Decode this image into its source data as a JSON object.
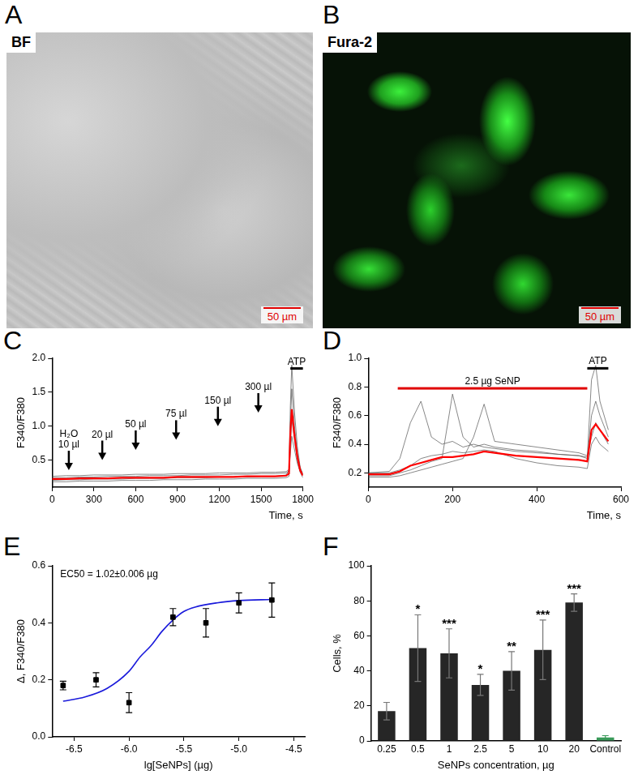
{
  "images": [
    {
      "panel": "A",
      "label": "BF",
      "scale_bar": "50 µm"
    },
    {
      "panel": "B",
      "label": "Fura-2",
      "scale_bar": "50 µm"
    }
  ],
  "chart_data": [
    {
      "panel": "C",
      "type": "line",
      "x_label": "Time, s",
      "y_label": "F340/F380",
      "x": [
        0,
        100,
        200,
        300,
        400,
        500,
        600,
        700,
        800,
        900,
        1000,
        1100,
        1200,
        1300,
        1400,
        1500,
        1600,
        1680,
        1700,
        1710,
        1720,
        1740,
        1760,
        1780,
        1800
      ],
      "series": [
        {
          "color": "#555555",
          "values": [
            0.2,
            0.21,
            0.21,
            0.22,
            0.22,
            0.22,
            0.23,
            0.23,
            0.23,
            0.24,
            0.24,
            0.24,
            0.25,
            0.25,
            0.25,
            0.26,
            0.26,
            0.28,
            0.35,
            1.3,
            1.9,
            1.2,
            0.7,
            0.4,
            0.28
          ]
        },
        {
          "color": "#555555",
          "values": [
            0.24,
            0.24,
            0.25,
            0.25,
            0.26,
            0.26,
            0.26,
            0.27,
            0.27,
            0.27,
            0.28,
            0.28,
            0.28,
            0.29,
            0.29,
            0.3,
            0.3,
            0.31,
            0.34,
            1.0,
            1.55,
            1.0,
            0.6,
            0.38,
            0.3
          ]
        },
        {
          "color": "#555555",
          "values": [
            0.18,
            0.18,
            0.19,
            0.19,
            0.19,
            0.2,
            0.2,
            0.2,
            0.21,
            0.21,
            0.21,
            0.22,
            0.22,
            0.22,
            0.23,
            0.23,
            0.23,
            0.24,
            0.26,
            0.7,
            1.1,
            0.8,
            0.5,
            0.32,
            0.24
          ]
        },
        {
          "color": "#555555",
          "values": [
            0.26,
            0.27,
            0.27,
            0.28,
            0.28,
            0.28,
            0.29,
            0.29,
            0.29,
            0.3,
            0.3,
            0.3,
            0.31,
            0.31,
            0.31,
            0.32,
            0.32,
            0.33,
            0.36,
            0.6,
            0.85,
            0.65,
            0.45,
            0.33,
            0.29
          ]
        },
        {
          "color": "#ff0000",
          "values": [
            0.22,
            0.22,
            0.23,
            0.23,
            0.23,
            0.24,
            0.24,
            0.24,
            0.24,
            0.25,
            0.25,
            0.25,
            0.25,
            0.25,
            0.26,
            0.26,
            0.26,
            0.27,
            0.3,
            0.9,
            1.25,
            0.85,
            0.55,
            0.35,
            0.27
          ]
        }
      ],
      "xlim": [
        0,
        1800
      ],
      "xticks": [
        0,
        300,
        600,
        900,
        1200,
        1500,
        1800
      ],
      "ylim": [
        0.1,
        2.0
      ],
      "yticks": [
        0.5,
        {
          "value": 1,
          "label": "1.0"
        },
        1.5,
        {
          "value": 2,
          "label": "2.0"
        }
      ],
      "grid": false,
      "annotations": [
        {
          "kind": "arrow",
          "text": [
            "H₂O",
            "10 µl"
          ],
          "x": 120,
          "y": 0.35
        },
        {
          "kind": "arrow",
          "text": [
            "20 µl"
          ],
          "x": 360,
          "y": 0.5
        },
        {
          "kind": "arrow",
          "text": [
            "50 µl"
          ],
          "x": 600,
          "y": 0.65
        },
        {
          "kind": "arrow",
          "text": [
            "75 µl"
          ],
          "x": 890,
          "y": 0.8
        },
        {
          "kind": "arrow",
          "text": [
            "150 µl"
          ],
          "x": 1190,
          "y": 1.0
        },
        {
          "kind": "arrow",
          "text": [
            "300 µl"
          ],
          "x": 1480,
          "y": 1.2
        },
        {
          "kind": "bar",
          "text": [
            "ATP"
          ],
          "x": [
            1710,
            1800
          ],
          "y": 1.85,
          "color": "#000000"
        }
      ]
    },
    {
      "panel": "D",
      "type": "line",
      "x_label": "Time, s",
      "y_label": "F340/F380",
      "x": [
        0,
        50,
        75,
        100,
        125,
        150,
        175,
        200,
        225,
        250,
        275,
        300,
        350,
        400,
        450,
        500,
        520,
        530,
        540,
        550,
        570
      ],
      "series": [
        {
          "color": "#555555",
          "values": [
            0.2,
            0.21,
            0.3,
            0.55,
            0.7,
            0.45,
            0.4,
            0.42,
            0.38,
            0.4,
            0.38,
            0.37,
            0.35,
            0.34,
            0.33,
            0.32,
            0.31,
            0.85,
            0.95,
            0.7,
            0.5
          ]
        },
        {
          "color": "#555555",
          "values": [
            0.18,
            0.18,
            0.2,
            0.22,
            0.25,
            0.28,
            0.3,
            0.75,
            0.45,
            0.38,
            0.4,
            0.38,
            0.36,
            0.35,
            0.33,
            0.32,
            0.3,
            0.6,
            0.7,
            0.6,
            0.45
          ]
        },
        {
          "color": "#555555",
          "values": [
            0.17,
            0.17,
            0.18,
            0.2,
            0.22,
            0.24,
            0.26,
            0.28,
            0.3,
            0.45,
            0.68,
            0.42,
            0.4,
            0.38,
            0.36,
            0.34,
            0.32,
            0.45,
            0.55,
            0.5,
            0.4
          ]
        },
        {
          "color": "#555555",
          "values": [
            0.2,
            0.2,
            0.22,
            0.25,
            0.3,
            0.32,
            0.33,
            0.35,
            0.34,
            0.35,
            0.36,
            0.35,
            0.3,
            0.27,
            0.25,
            0.24,
            0.23,
            0.4,
            0.45,
            0.4,
            0.35
          ]
        },
        {
          "color": "#ff0000",
          "values": [
            0.19,
            0.19,
            0.21,
            0.25,
            0.27,
            0.29,
            0.31,
            0.31,
            0.32,
            0.33,
            0.35,
            0.34,
            0.32,
            0.31,
            0.3,
            0.29,
            0.28,
            0.5,
            0.54,
            0.5,
            0.42
          ]
        }
      ],
      "xlim": [
        0,
        600
      ],
      "xticks": [
        0,
        200,
        400,
        600
      ],
      "ylim": [
        0.1,
        1.0
      ],
      "yticks": [
        0.2,
        0.4,
        0.6,
        0.8,
        {
          "value": 1,
          "label": "1.0"
        }
      ],
      "grid": false,
      "annotations": [
        {
          "kind": "bar",
          "text": [
            "2.5 µg SeNP"
          ],
          "x": [
            70,
            520
          ],
          "y": 0.79,
          "color": "#e00000"
        },
        {
          "kind": "bar",
          "text": [
            "ATP"
          ],
          "x": [
            520,
            570
          ],
          "y": 0.93,
          "color": "#000000"
        }
      ]
    },
    {
      "panel": "E",
      "type": "scatter",
      "x_label": "lg[SeNPs] (µg)",
      "y_label": "Δ, F340/F380",
      "annotations": [
        {
          "kind": "text",
          "text": [
            "EC50 = 1.02±0.006 µg"
          ]
        }
      ],
      "series": [
        {
          "type": "scatter",
          "marker": "square",
          "color": "#000000",
          "x": [
            -6.6,
            -6.3,
            -6.0,
            -5.6,
            -5.3,
            -5.0,
            -4.7
          ],
          "values": [
            0.18,
            0.2,
            0.12,
            0.42,
            0.4,
            0.47,
            0.48
          ],
          "errors": [
            0.015,
            0.025,
            0.035,
            0.03,
            0.05,
            0.035,
            0.06
          ]
        },
        {
          "type": "line",
          "line_style": "solid",
          "color": "#1a1adb",
          "x": [
            -6.6,
            -6.4,
            -6.2,
            -6.0,
            -5.9,
            -5.8,
            -5.7,
            -5.6,
            -5.5,
            -5.4,
            -5.2,
            -5.0,
            -4.7
          ],
          "values": [
            0.125,
            0.14,
            0.17,
            0.23,
            0.28,
            0.32,
            0.37,
            0.41,
            0.44,
            0.455,
            0.47,
            0.478,
            0.482
          ]
        }
      ],
      "xlim": [
        -6.7,
        -4.4
      ],
      "xticks": [
        -6.5,
        {
          "value": -6,
          "label": "-6.0"
        },
        -5.5,
        {
          "value": -5,
          "label": "-5.0"
        },
        -4.5
      ],
      "ylim": [
        0,
        0.6
      ],
      "yticks": [
        {
          "value": 0,
          "label": "0.0"
        },
        0.2,
        0.4,
        0.6
      ],
      "grid": false
    },
    {
      "panel": "F",
      "type": "bar",
      "x_label": "SeNPs concentration, µg",
      "y_label": "Cells, %",
      "categories": [
        "0.25",
        "0.5",
        "1",
        "2.5",
        "5",
        "10",
        "20",
        "Control"
      ],
      "values": [
        17,
        53,
        50,
        32,
        40,
        52,
        79,
        2
      ],
      "errors": [
        5,
        19,
        14,
        6,
        11,
        17,
        5,
        1
      ],
      "significance": [
        null,
        "*",
        "***",
        "*",
        "**",
        "***",
        "***",
        null
      ],
      "colors": [
        "#262626",
        "#262626",
        "#262626",
        "#262626",
        "#262626",
        "#262626",
        "#262626",
        "#3a9a5a"
      ],
      "ylim": [
        0,
        100
      ],
      "yticks": [
        0,
        20,
        40,
        60,
        80,
        100
      ],
      "grid": false
    }
  ]
}
